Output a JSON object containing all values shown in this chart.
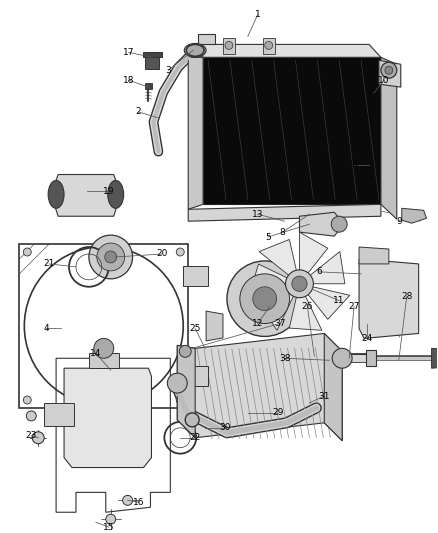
{
  "bg_color": "#ffffff",
  "fig_width": 4.38,
  "fig_height": 5.33,
  "dpi": 100,
  "line_color": "#333333",
  "text_color": "#000000"
}
